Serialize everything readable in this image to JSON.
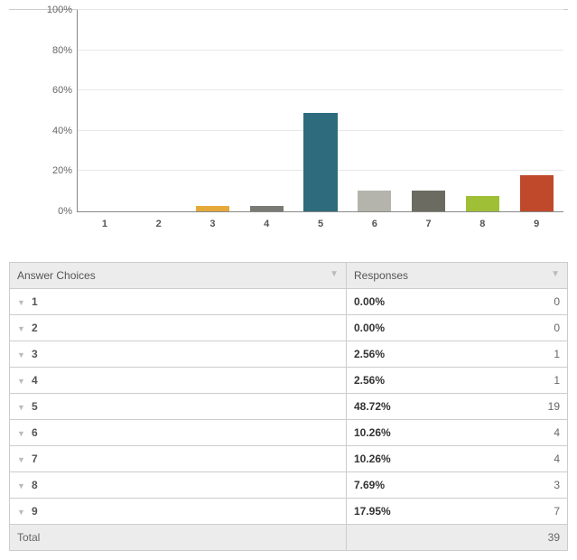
{
  "chart": {
    "type": "bar",
    "ylim": [
      0,
      100
    ],
    "ytick_step": 20,
    "ytick_labels": [
      "0%",
      "20%",
      "40%",
      "60%",
      "80%",
      "100%"
    ],
    "categories": [
      "1",
      "2",
      "3",
      "4",
      "5",
      "6",
      "7",
      "8",
      "9"
    ],
    "values": [
      0.0,
      0.0,
      2.56,
      2.56,
      48.72,
      10.26,
      10.26,
      7.69,
      17.95
    ],
    "bar_colors": [
      "#6b8aad",
      "#e5a93a",
      "#e5a93a",
      "#7a7a74",
      "#2e6b7c",
      "#b4b4ac",
      "#6b6b61",
      "#9fbf37",
      "#c0492c"
    ],
    "grid_color": "#e8e8e8",
    "axis_color": "#888888",
    "label_fontsize": 11,
    "bar_width": 0.62
  },
  "table": {
    "header_answer": "Answer Choices",
    "header_responses": "Responses",
    "rows": [
      {
        "key": "1",
        "pct": "0.00%",
        "count": "0"
      },
      {
        "key": "2",
        "pct": "0.00%",
        "count": "0"
      },
      {
        "key": "3",
        "pct": "2.56%",
        "count": "1"
      },
      {
        "key": "4",
        "pct": "2.56%",
        "count": "1"
      },
      {
        "key": "5",
        "pct": "48.72%",
        "count": "19"
      },
      {
        "key": "6",
        "pct": "10.26%",
        "count": "4"
      },
      {
        "key": "7",
        "pct": "10.26%",
        "count": "4"
      },
      {
        "key": "8",
        "pct": "7.69%",
        "count": "3"
      },
      {
        "key": "9",
        "pct": "17.95%",
        "count": "7"
      }
    ],
    "total_label": "Total",
    "total_value": "39"
  }
}
